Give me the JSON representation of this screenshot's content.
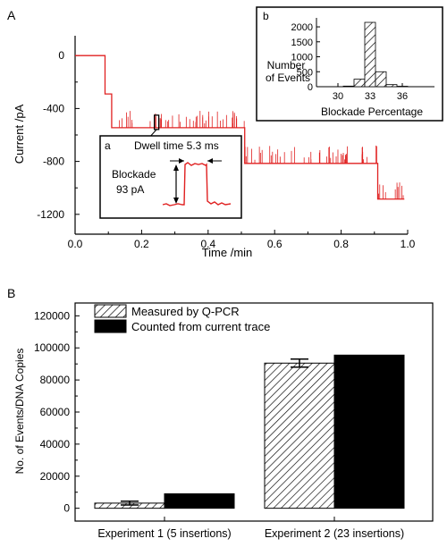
{
  "panels": {
    "a_label": "A",
    "b_label": "B"
  },
  "chart_data": [
    {
      "id": "current-trace",
      "type": "line",
      "xlabel": "Time /min",
      "ylabel": "Current /pA",
      "xlim": [
        0.0,
        1.0
      ],
      "ylim": [
        -1350,
        150
      ],
      "x_ticks": [
        "0.0",
        "0.2",
        "0.4",
        "0.6",
        "0.8",
        "1.0"
      ],
      "y_ticks": [
        "0",
        "-400",
        "-800",
        "-1200"
      ],
      "grid": false,
      "line_color": "#e02020",
      "levels": [
        {
          "x_start": 0.0,
          "x_end": 0.09,
          "current": 0
        },
        {
          "x_start": 0.09,
          "x_end": 0.11,
          "current": -290
        },
        {
          "x_start": 0.11,
          "x_end": 0.51,
          "current": -545
        },
        {
          "x_start": 0.51,
          "x_end": 0.91,
          "current": -815
        },
        {
          "x_start": 0.91,
          "x_end": 0.99,
          "current": -1085
        }
      ]
    },
    {
      "id": "inset-dwell",
      "type": "line",
      "label": "a",
      "annotation_dwell": "Dwell time 5.3 ms",
      "annotation_blockade_1": "Blockade",
      "annotation_blockade_2": "93 pA",
      "dwell_time_ms": 5.3,
      "blockade_pA": 93
    },
    {
      "id": "inset-histogram",
      "type": "bar",
      "label": "b",
      "xlabel": "Blockade Percentage",
      "ylabel_line1": "Number",
      "ylabel_line2": "of Events",
      "x_ticks": [
        "30",
        "33",
        "36"
      ],
      "y_ticks": [
        "0",
        "500",
        "1000",
        "1500",
        "2000"
      ],
      "xlim": [
        28,
        39
      ],
      "ylim": [
        0,
        2300
      ],
      "bin_width": 1,
      "bins": [
        {
          "center": 31,
          "count": 20
        },
        {
          "center": 32,
          "count": 250
        },
        {
          "center": 33,
          "count": 2150
        },
        {
          "center": 34,
          "count": 500
        },
        {
          "center": 35,
          "count": 70
        },
        {
          "center": 36,
          "count": 15
        }
      ]
    },
    {
      "id": "events-vs-qpcr",
      "type": "bar",
      "ylabel": "No. of Events/DNA Copies",
      "ylim": [
        -8000,
        128000
      ],
      "y_ticks": [
        "0",
        "20000",
        "40000",
        "60000",
        "80000",
        "100000",
        "120000"
      ],
      "categories": [
        "Experiment 1 (5 insertions)",
        "Experiment 2 (23 insertions)"
      ],
      "legend_position": "top-left",
      "series": [
        {
          "name": "Measured by Q-PCR",
          "style": "hatched",
          "values": [
            3200,
            90500
          ],
          "errors": [
            1200,
            2500
          ]
        },
        {
          "name": "Counted from current trace",
          "style": "solid",
          "values": [
            9000,
            95500
          ],
          "errors": [
            0,
            0
          ]
        }
      ]
    }
  ]
}
